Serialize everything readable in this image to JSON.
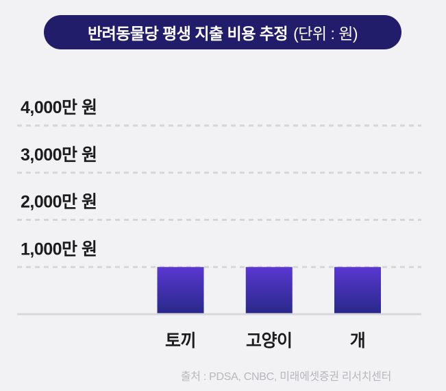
{
  "colors": {
    "background": "#f2f2f4",
    "title_bg": "#221d6b",
    "title_text": "#ffffff",
    "bar_top": "#5a38d2",
    "bar_bottom": "#29298a",
    "grid": "#d6d6da",
    "axis": "#d8d8dc",
    "label_text": "#1c1c1c",
    "source_text": "#b7b7bd"
  },
  "chart_data": {
    "type": "bar",
    "title": "반려동물당 평생 지출 비용 추정",
    "unit_label": "(단위 : 원)",
    "categories": [
      "토끼",
      "고양이",
      "개"
    ],
    "values": [
      1000,
      1000,
      1000
    ],
    "ylim": [
      0,
      4000
    ],
    "yticks": [
      1000,
      2000,
      3000,
      4000
    ],
    "ytick_labels": [
      "1,000만 원",
      "2,000만 원",
      "3,000만 원",
      "4,000만 원"
    ],
    "grid": true
  },
  "source": "출처 : PDSA, CNBC, 미래에셋증권 리서치센터"
}
